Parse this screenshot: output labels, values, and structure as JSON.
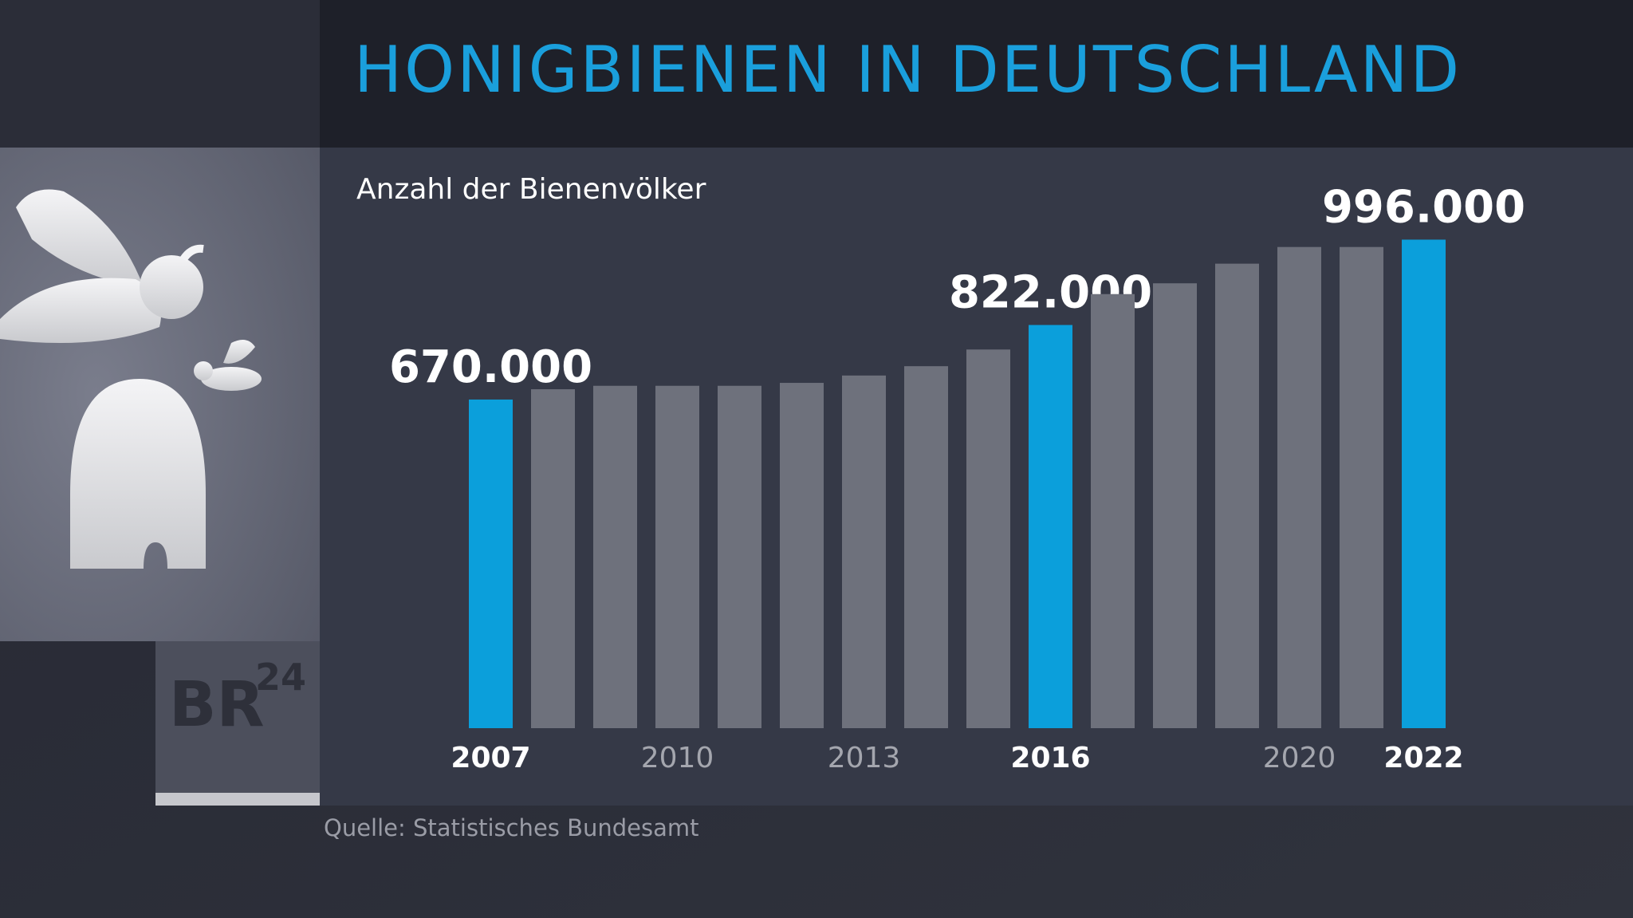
{
  "chart_data": {
    "type": "bar",
    "title": "HONIGBIENEN IN DEUTSCHLAND",
    "subtitle": "Anzahl der Bienenvölker",
    "source": "Quelle: Statistisches Bundesamt",
    "logo": {
      "text": "BR",
      "superscript": "24"
    },
    "categories": [
      "2007",
      null,
      null,
      "2010",
      null,
      null,
      "2013",
      null,
      null,
      "2016",
      null,
      null,
      null,
      "2020",
      null,
      "2022"
    ],
    "values": [
      670000,
      691000,
      698000,
      698000,
      698000,
      704000,
      719000,
      738000,
      772000,
      822000,
      885000,
      907000,
      947000,
      981000,
      981000,
      996000
    ],
    "value_labels": [
      "670.000",
      null,
      null,
      null,
      null,
      null,
      null,
      null,
      null,
      "822.000",
      null,
      null,
      null,
      null,
      null,
      "996.000"
    ],
    "colors": [
      "#0b9fdb",
      "#6e717c",
      "#6e717c",
      "#6e717c",
      "#6e717c",
      "#6e717c",
      "#6e717c",
      "#6e717c",
      "#6e717c",
      "#0b9fdb",
      "#6e717c",
      "#6e717c",
      "#6e717c",
      "#6e717c",
      "#6e717c",
      "#0b9fdb"
    ],
    "highlight_color": "#0b9fdb",
    "ylim": [
      0,
      1000000
    ]
  }
}
